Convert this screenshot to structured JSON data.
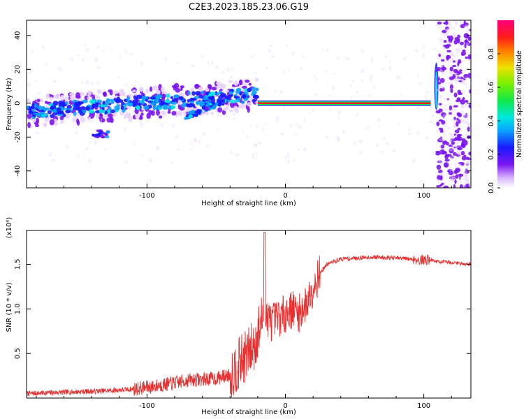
{
  "title": "C2E3.2023.185.23.06.G19",
  "chart_data": [
    {
      "type": "heatmap",
      "xlabel": "Height of straight line (km)",
      "ylabel": "Frequency (Hz)",
      "xlim": [
        -187,
        134
      ],
      "ylim": [
        -50,
        49
      ],
      "x_ticks": [
        -100,
        0,
        100
      ],
      "y_ticks": [
        -40,
        -20,
        0,
        20,
        40
      ],
      "colorbar": {
        "label": "Normalized spectral amplitude",
        "range": [
          0.0,
          1.0
        ],
        "ticks": [
          "0.0",
          "0.2",
          "0.4",
          "0.6",
          "0.8"
        ],
        "colormap": "rainbow (white → purple → blue → cyan → green → yellow → red → magenta)"
      },
      "features": [
        {
          "name": "spread signal band",
          "x_range": [
            -187,
            -20
          ],
          "freq_center_start": -5,
          "freq_center_end": 5,
          "amplitude": "0.2-0.5"
        },
        {
          "name": "secondary branch",
          "x_range": [
            -72,
            -40
          ],
          "freq_center_start": -8,
          "freq_center_end": 3
        },
        {
          "name": "low cluster",
          "x_range": [
            -140,
            -128
          ],
          "freq_center": -18
        },
        {
          "name": "narrow carrier line",
          "x_range": [
            -20,
            105
          ],
          "freq": 0,
          "amplitude": "~0.9"
        },
        {
          "name": "vertical spike",
          "x": 108,
          "freq_range": [
            -10,
            30
          ]
        },
        {
          "name": "noise region",
          "x_range": [
            110,
            134
          ],
          "freq_range": [
            -50,
            49
          ]
        }
      ]
    },
    {
      "type": "line",
      "xlabel": "Height of straight line (km)",
      "ylabel": "SNR (10 * v/v)",
      "y_multiplier": "(x10⁴)",
      "xlim": [
        -187,
        134
      ],
      "ylim": [
        0.0,
        1.88
      ],
      "x_ticks": [
        -100,
        0,
        100
      ],
      "y_ticks": [
        0.5,
        1.0,
        1.5
      ],
      "color": "#e83030",
      "series": [
        {
          "x": [
            -187,
            -170,
            -150,
            -130,
            -110,
            -95,
            -80,
            -70,
            -60,
            -50,
            -40,
            -30,
            -22,
            -16,
            -10,
            -5,
            0,
            5,
            10,
            15,
            20,
            25,
            30,
            40,
            50,
            60,
            70,
            80,
            90,
            95,
            100,
            105,
            110,
            120,
            134
          ],
          "y": [
            0.05,
            0.06,
            0.07,
            0.08,
            0.1,
            0.13,
            0.17,
            0.2,
            0.21,
            0.22,
            0.26,
            0.45,
            0.6,
            0.95,
            0.85,
            0.9,
            0.95,
            1.0,
            0.95,
            1.05,
            1.25,
            1.4,
            1.5,
            1.56,
            1.57,
            1.58,
            1.58,
            1.57,
            1.56,
            1.55,
            1.55,
            1.55,
            1.53,
            1.52,
            1.5
          ]
        }
      ]
    }
  ]
}
